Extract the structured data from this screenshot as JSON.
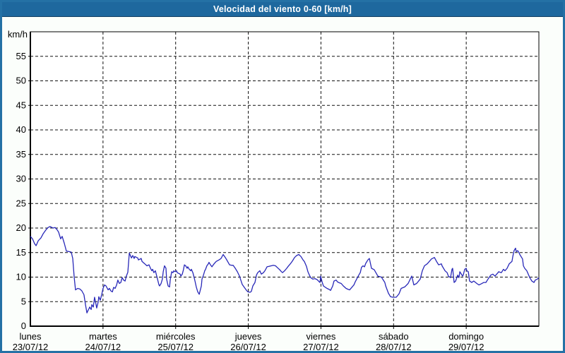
{
  "window": {
    "title": "Velocidad del viento 0-60 [km/h]"
  },
  "colors": {
    "titlebar_bg": "#1e689e",
    "titlebar_text": "#ffffff",
    "window_border": "#2471a5",
    "page_bg": "#fbfefb",
    "plot_bg": "#ffffff",
    "axis": "#000000",
    "grid": "#111111",
    "label": "#000000",
    "line": "#2828b8"
  },
  "chart_data": {
    "type": "line",
    "title": "Velocidad del viento 0-60 [km/h]",
    "ylabel": "km/h",
    "ylim": [
      0,
      60
    ],
    "yticks": [
      55,
      50,
      45,
      40,
      35,
      30,
      25,
      20,
      15,
      10,
      5,
      0
    ],
    "grid": "dashed",
    "x_hours_total": 168,
    "days": [
      {
        "name": "lunes",
        "date": "23/07/12"
      },
      {
        "name": "martes",
        "date": "24/07/12"
      },
      {
        "name": "miércoles",
        "date": "25/07/12"
      },
      {
        "name": "jueves",
        "date": "26/07/12"
      },
      {
        "name": "viernes",
        "date": "27/07/12"
      },
      {
        "name": "sábado",
        "date": "28/07/12"
      },
      {
        "name": "domingo",
        "date": "29/07/12"
      }
    ],
    "series": [
      {
        "name": "Velocidad del viento",
        "color": "#2828b8",
        "points": [
          [
            0,
            18.3
          ],
          [
            0.7,
            17.8
          ],
          [
            1.4,
            16.8
          ],
          [
            1.9,
            16.4
          ],
          [
            2.6,
            17.4
          ],
          [
            3.5,
            18
          ],
          [
            4.2,
            18.8
          ],
          [
            5.1,
            19.6
          ],
          [
            5.8,
            20.1
          ],
          [
            6.5,
            20.3
          ],
          [
            7.5,
            20
          ],
          [
            8.2,
            20.1
          ],
          [
            8.9,
            19.6
          ],
          [
            9.3,
            19.2
          ],
          [
            10,
            17.8
          ],
          [
            10.5,
            18.3
          ],
          [
            11.2,
            16.9
          ],
          [
            11.9,
            15.3
          ],
          [
            12.8,
            15.2
          ],
          [
            13.5,
            15.1
          ],
          [
            14,
            13.8
          ],
          [
            14.5,
            9.9
          ],
          [
            14.9,
            7.4
          ],
          [
            15.6,
            7.7
          ],
          [
            16.3,
            7.6
          ],
          [
            17,
            7.2
          ],
          [
            17.7,
            6.4
          ],
          [
            18.2,
            4.4
          ],
          [
            18.7,
            2.7
          ],
          [
            18.9,
            3
          ],
          [
            19.4,
            3.6
          ],
          [
            19.6,
            3.9
          ],
          [
            20.1,
            3.4
          ],
          [
            20.3,
            4.4
          ],
          [
            20.8,
            3.9
          ],
          [
            21.2,
            5.9
          ],
          [
            21.7,
            4.4
          ],
          [
            21.9,
            3.7
          ],
          [
            22.4,
            4.9
          ],
          [
            22.6,
            6
          ],
          [
            23.1,
            5.3
          ],
          [
            23.6,
            6.5
          ],
          [
            24,
            7.7
          ],
          [
            24.5,
            8.4
          ],
          [
            25,
            8.2
          ],
          [
            25.7,
            7.4
          ],
          [
            26.1,
            7.7
          ],
          [
            26.6,
            7.2
          ],
          [
            27.1,
            7
          ],
          [
            27.5,
            7.9
          ],
          [
            28,
            7.7
          ],
          [
            28.5,
            8.4
          ],
          [
            28.9,
            9.4
          ],
          [
            29.4,
            8.7
          ],
          [
            29.9,
            8.9
          ],
          [
            30.3,
            9.9
          ],
          [
            30.8,
            9.4
          ],
          [
            31.3,
            9.2
          ],
          [
            31.7,
            10.2
          ],
          [
            32.2,
            11
          ],
          [
            32.7,
            14.9
          ],
          [
            33.4,
            13.9
          ],
          [
            33.8,
            14.4
          ],
          [
            34.3,
            13.8
          ],
          [
            34.5,
            14.2
          ],
          [
            35.5,
            13.9
          ],
          [
            35.7,
            13.5
          ],
          [
            36.6,
            13.8
          ],
          [
            36.9,
            13.2
          ],
          [
            37.8,
            12.7
          ],
          [
            38.5,
            12.3
          ],
          [
            39.2,
            12.5
          ],
          [
            39.7,
            11.8
          ],
          [
            40.1,
            11.3
          ],
          [
            40.4,
            11.6
          ],
          [
            40.8,
            10.9
          ],
          [
            41.3,
            11.3
          ],
          [
            42,
            9.6
          ],
          [
            42.5,
            8.4
          ],
          [
            42.7,
            8.2
          ],
          [
            43.2,
            8.7
          ],
          [
            43.6,
            9.6
          ],
          [
            43.9,
            11.1
          ],
          [
            44.3,
            12.3
          ],
          [
            44.8,
            11.8
          ],
          [
            45,
            9.6
          ],
          [
            45.5,
            8.2
          ],
          [
            46,
            8
          ],
          [
            46.2,
            9.4
          ],
          [
            46.7,
            11.1
          ],
          [
            47.1,
            10.9
          ],
          [
            47.4,
            11.3
          ],
          [
            47.8,
            11.1
          ],
          [
            48.3,
            11.3
          ],
          [
            48.5,
            10.9
          ],
          [
            49.5,
            10.6
          ],
          [
            49.7,
            10.2
          ],
          [
            50.2,
            10.6
          ],
          [
            50.6,
            11.6
          ],
          [
            50.9,
            12.5
          ],
          [
            51.3,
            12.3
          ],
          [
            51.8,
            11.8
          ],
          [
            52,
            12.1
          ],
          [
            52.5,
            11.6
          ],
          [
            53,
            11.3
          ],
          [
            53.2,
            11.6
          ],
          [
            53.7,
            10.9
          ],
          [
            54.1,
            9.9
          ],
          [
            54.4,
            9.2
          ],
          [
            54.8,
            8
          ],
          [
            55.3,
            7
          ],
          [
            55.8,
            6.5
          ],
          [
            56.5,
            8.2
          ],
          [
            56.7,
            9.6
          ],
          [
            57.2,
            10.4
          ],
          [
            57.6,
            11.3
          ],
          [
            57.9,
            11.6
          ],
          [
            58.3,
            12.3
          ],
          [
            58.8,
            12.7
          ],
          [
            59,
            13
          ],
          [
            59.5,
            12.5
          ],
          [
            60,
            12.1
          ],
          [
            60.2,
            12.3
          ],
          [
            60.7,
            12.7
          ],
          [
            61.4,
            13.2
          ],
          [
            62.3,
            13.5
          ],
          [
            63,
            13.8
          ],
          [
            63.7,
            14.6
          ],
          [
            64.4,
            14
          ],
          [
            64.9,
            13.5
          ],
          [
            65.8,
            12.5
          ],
          [
            66.5,
            12.4
          ],
          [
            67,
            12.4
          ],
          [
            67.7,
            11.8
          ],
          [
            68.4,
            11.1
          ],
          [
            69.1,
            10.2
          ],
          [
            70,
            8.5
          ],
          [
            70.7,
            7.9
          ],
          [
            71.4,
            7.3
          ],
          [
            71.9,
            7
          ],
          [
            72.6,
            6.9
          ],
          [
            73,
            7.1
          ],
          [
            73.5,
            8.2
          ],
          [
            74.2,
            8.9
          ],
          [
            74.7,
            10.4
          ],
          [
            75.1,
            10.9
          ],
          [
            75.8,
            11.3
          ],
          [
            76.3,
            10.6
          ],
          [
            77,
            10.9
          ],
          [
            77.5,
            11.3
          ],
          [
            78.2,
            12.1
          ],
          [
            78.9,
            12.2
          ],
          [
            79.6,
            12.3
          ],
          [
            80.3,
            12.4
          ],
          [
            81,
            12.3
          ],
          [
            81.7,
            11.9
          ],
          [
            82.4,
            11.5
          ],
          [
            82.8,
            11.2
          ],
          [
            83.3,
            10.9
          ],
          [
            84,
            11.3
          ],
          [
            84.7,
            11.8
          ],
          [
            85.2,
            12.2
          ],
          [
            85.9,
            12.7
          ],
          [
            86.6,
            13.3
          ],
          [
            87.3,
            14
          ],
          [
            88,
            14.4
          ],
          [
            88.7,
            14.6
          ],
          [
            89.4,
            14.2
          ],
          [
            90.1,
            13.5
          ],
          [
            90.5,
            13.2
          ],
          [
            91.2,
            12.2
          ],
          [
            91.7,
            11.1
          ],
          [
            92.2,
            10.4
          ],
          [
            92.6,
            9.9
          ],
          [
            93.3,
            9.6
          ],
          [
            94,
            9.7
          ],
          [
            94.7,
            9.5
          ],
          [
            95.2,
            9.2
          ],
          [
            95.7,
            8.9
          ],
          [
            95.9,
            10.2
          ],
          [
            96.4,
            9
          ],
          [
            96.8,
            8.2
          ],
          [
            97.5,
            7.9
          ],
          [
            98,
            7.7
          ],
          [
            98.7,
            7.5
          ],
          [
            99.2,
            7.3
          ],
          [
            99.9,
            8.2
          ],
          [
            100.3,
            9.2
          ],
          [
            101,
            9.4
          ],
          [
            101.5,
            9
          ],
          [
            102.2,
            8.8
          ],
          [
            102.7,
            8.7
          ],
          [
            103.4,
            8.2
          ],
          [
            104.3,
            7.7
          ],
          [
            105,
            7.5
          ],
          [
            105.5,
            7.4
          ],
          [
            106.2,
            7.9
          ],
          [
            106.9,
            8.4
          ],
          [
            107.3,
            9
          ],
          [
            107.8,
            9.6
          ],
          [
            108.5,
            10.4
          ],
          [
            109,
            10.9
          ],
          [
            109.4,
            12
          ],
          [
            109.9,
            12.3
          ],
          [
            110.4,
            12.1
          ],
          [
            110.8,
            12.8
          ],
          [
            111.5,
            13.5
          ],
          [
            112,
            13.8
          ],
          [
            112.7,
            11.8
          ],
          [
            113.6,
            11.5
          ],
          [
            114.8,
            10.2
          ],
          [
            116,
            10
          ],
          [
            117.1,
            8.9
          ],
          [
            117.4,
            8.2
          ],
          [
            118.3,
            6.7
          ],
          [
            119,
            6
          ],
          [
            119.7,
            5.9
          ],
          [
            120.9,
            5.9
          ],
          [
            121.8,
            6.6
          ],
          [
            122.5,
            7.7
          ],
          [
            123.7,
            8
          ],
          [
            124.8,
            8.7
          ],
          [
            125.5,
            9.6
          ],
          [
            126,
            10.2
          ],
          [
            126.7,
            8.4
          ],
          [
            127.6,
            8.7
          ],
          [
            128.8,
            9.6
          ],
          [
            129.5,
            11.3
          ],
          [
            130.2,
            12.3
          ],
          [
            131.1,
            12.7
          ],
          [
            131.8,
            13.2
          ],
          [
            132.5,
            13.7
          ],
          [
            133.5,
            14
          ],
          [
            134.2,
            13.2
          ],
          [
            134.9,
            12.5
          ],
          [
            135.8,
            12.7
          ],
          [
            136,
            12.3
          ],
          [
            137,
            11.3
          ],
          [
            137.7,
            10.9
          ],
          [
            138.1,
            10.2
          ],
          [
            138.8,
            9.9
          ],
          [
            139.3,
            11.6
          ],
          [
            139.5,
            11.8
          ],
          [
            140,
            8.9
          ],
          [
            140.5,
            9.2
          ],
          [
            141.2,
            10.4
          ],
          [
            141.6,
            9.9
          ],
          [
            141.9,
            11.1
          ],
          [
            142.8,
            10.2
          ],
          [
            143,
            10.4
          ],
          [
            143.5,
            11.6
          ],
          [
            144,
            11.8
          ],
          [
            144.2,
            11.3
          ],
          [
            144.7,
            11.1
          ],
          [
            145.1,
            9.2
          ],
          [
            145.8,
            8.9
          ],
          [
            146.5,
            9.2
          ],
          [
            147.5,
            8.7
          ],
          [
            148.2,
            8.4
          ],
          [
            148.9,
            8.6
          ],
          [
            149.8,
            8.9
          ],
          [
            150.5,
            8.9
          ],
          [
            151.2,
            9.6
          ],
          [
            152.1,
            10.4
          ],
          [
            152.8,
            10.6
          ],
          [
            153.5,
            10.2
          ],
          [
            154.5,
            10.9
          ],
          [
            154.7,
            11.1
          ],
          [
            155.6,
            10.9
          ],
          [
            156.3,
            11.6
          ],
          [
            156.8,
            11.3
          ],
          [
            157.5,
            11.8
          ],
          [
            158.2,
            12.7
          ],
          [
            159.1,
            13.2
          ],
          [
            159.4,
            14.2
          ],
          [
            159.8,
            15.4
          ],
          [
            160.3,
            15.9
          ],
          [
            160.5,
            15.2
          ],
          [
            161,
            15.4
          ],
          [
            161.5,
            14.9
          ],
          [
            161.7,
            14.6
          ],
          [
            162.6,
            13.7
          ],
          [
            162.9,
            12.3
          ],
          [
            163.3,
            11.8
          ],
          [
            164,
            11.3
          ],
          [
            165,
            9.9
          ],
          [
            165.7,
            9.2
          ],
          [
            166.4,
            8.9
          ],
          [
            166.8,
            9.4
          ],
          [
            167.5,
            9.6
          ],
          [
            168,
            9.9
          ]
        ]
      }
    ]
  }
}
